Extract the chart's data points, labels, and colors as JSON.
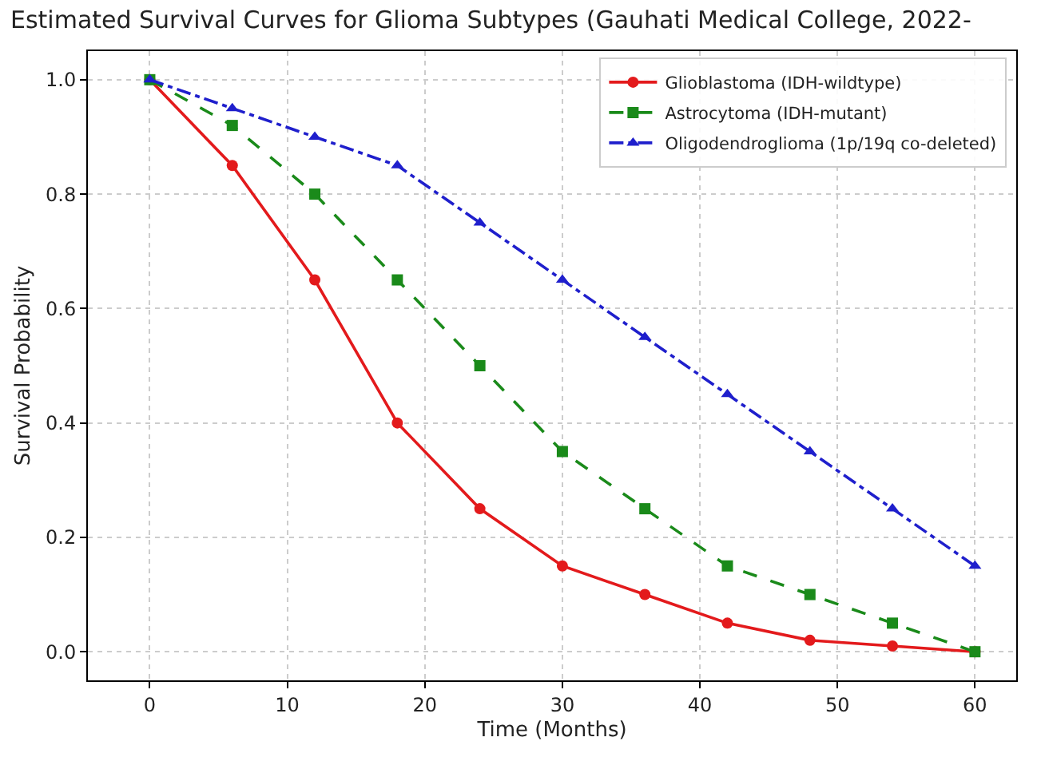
{
  "chart_data": {
    "type": "line",
    "title": "Estimated Survival Curves for Glioma Subtypes (Gauhati Medical College, 2022-",
    "xlabel": "Time (Months)",
    "ylabel": "Survival Probability",
    "x": [
      0,
      6,
      12,
      18,
      24,
      30,
      36,
      42,
      48,
      54,
      60
    ],
    "series": [
      {
        "name": "Glioblastoma (IDH-wildtype)",
        "color": "#e31a1c",
        "marker": "circle",
        "line_style": "solid",
        "values": [
          1.0,
          0.85,
          0.65,
          0.4,
          0.25,
          0.15,
          0.1,
          0.05,
          0.02,
          0.01,
          0.0
        ]
      },
      {
        "name": "Astrocytoma (IDH-mutant)",
        "color": "#1a8a1a",
        "marker": "square",
        "line_style": "dashed",
        "values": [
          1.0,
          0.92,
          0.8,
          0.65,
          0.5,
          0.35,
          0.25,
          0.15,
          0.1,
          0.05,
          0.0
        ]
      },
      {
        "name": "Oligodendroglioma (1p/19q co-deleted)",
        "color": "#1f1fcc",
        "marker": "triangle",
        "line_style": "dashdot",
        "values": [
          1.0,
          0.95,
          0.9,
          0.85,
          0.75,
          0.65,
          0.55,
          0.45,
          0.35,
          0.25,
          0.15
        ]
      }
    ],
    "xlim": [
      -4.5,
      63
    ],
    "xticks": [
      0,
      10,
      20,
      30,
      40,
      50,
      60
    ],
    "ylim": [
      -0.05,
      1.05
    ],
    "yticks": [
      {
        "value": 0,
        "label": "0.0"
      },
      0.2,
      0.4,
      0.6,
      0.8,
      {
        "value": 1,
        "label": "1.0"
      }
    ],
    "grid": true,
    "legend": "top right"
  }
}
